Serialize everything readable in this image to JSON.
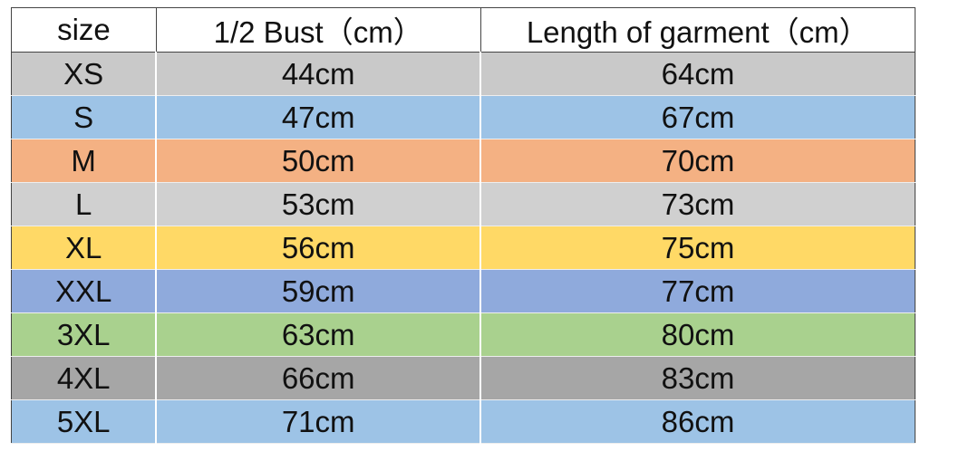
{
  "table": {
    "header": [
      "size",
      "1/2 Bust（cm）",
      "Length of garment（cm）"
    ],
    "rows": [
      [
        "XS",
        "44cm",
        "64cm"
      ],
      [
        "S",
        "47cm",
        "67cm"
      ],
      [
        "M",
        "50cm",
        "70cm"
      ],
      [
        "L",
        "53cm",
        "73cm"
      ],
      [
        "XL",
        "56cm",
        "75cm"
      ],
      [
        "XXL",
        "59cm",
        "77cm"
      ],
      [
        "3XL",
        "63cm",
        "80cm"
      ],
      [
        "4XL",
        "66cm",
        "83cm"
      ],
      [
        "5XL",
        "71cm",
        "86cm"
      ]
    ]
  }
}
